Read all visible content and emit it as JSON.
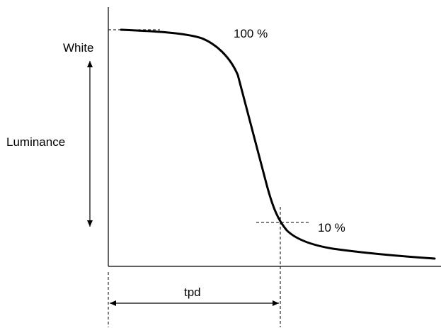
{
  "labels": {
    "white": "White",
    "luminance": "Luminance",
    "pct100": "100 %",
    "pct10": "10 %",
    "tpd": "tpd"
  },
  "colors": {
    "line": "#000000",
    "background": "#ffffff"
  }
}
